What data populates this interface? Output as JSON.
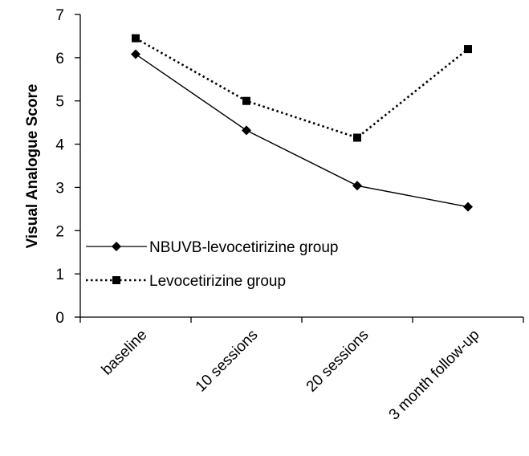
{
  "chart_data": {
    "type": "line",
    "title": "",
    "xlabel": "",
    "ylabel": "Visual Analogue Score",
    "ylim": [
      0,
      7
    ],
    "yticks": [
      "0",
      "1",
      "2",
      "3",
      "4",
      "5",
      "6",
      "7"
    ],
    "categories": [
      "baseline",
      "10 sessions",
      "20 sessions",
      "3 month follow-up"
    ],
    "grid": false,
    "legend_position": "left-lower",
    "series": [
      {
        "name": "NBUVB-levocetirizine group",
        "values": [
          6.08,
          4.32,
          3.04,
          2.55
        ],
        "line_style": "solid",
        "marker": "diamond",
        "color": "#000000"
      },
      {
        "name": "Levocetirizine group",
        "values": [
          6.45,
          5.0,
          4.15,
          6.2
        ],
        "line_style": "dotted",
        "marker": "square",
        "color": "#000000"
      }
    ]
  }
}
